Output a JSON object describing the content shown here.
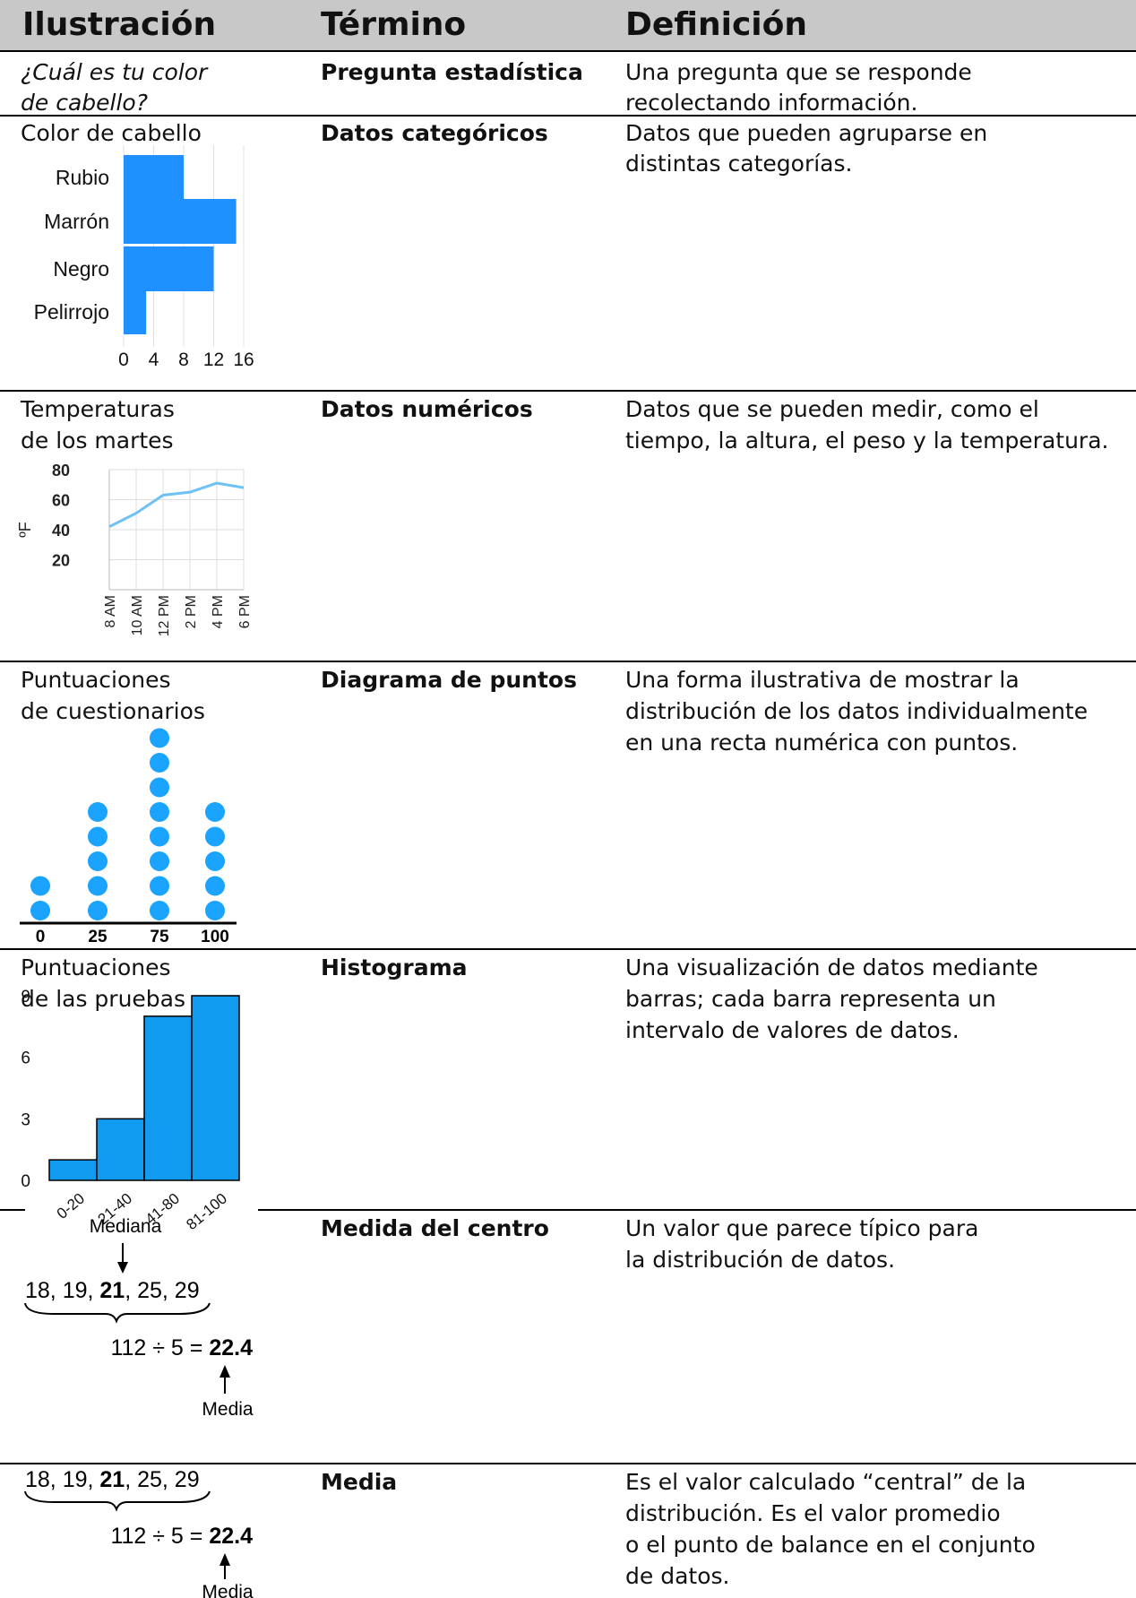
{
  "headers": {
    "illustration": "Ilustración",
    "term": "Término",
    "definition": "Definición"
  },
  "rows": [
    {
      "ill_title_1": "¿Cuál es tu color",
      "ill_title_2": "de cabello?",
      "term": "Pregunta estadística",
      "def_1": "Una pregunta que se responde",
      "def_2": "recolectando información."
    },
    {
      "ill_title_1": "Color de cabello",
      "term": "Datos categóricos",
      "def_1": "Datos que pueden agruparse en",
      "def_2": "distintas categorías."
    },
    {
      "ill_title_1": "Temperaturas",
      "ill_title_2": "de los martes",
      "term": "Datos numéricos",
      "def_1": "Datos que se pueden medir, como el",
      "def_2": "tiempo, la altura, el peso y la temperatura."
    },
    {
      "ill_title_1": "Puntuaciones",
      "ill_title_2": "de cuestionarios",
      "term": "Diagrama de puntos",
      "def_1": "Una forma ilustrativa de mostrar la",
      "def_2": "distribución de los datos individualmente",
      "def_3": "en una recta numérica con puntos."
    },
    {
      "ill_title_1": "Puntuaciones",
      "ill_title_2": "de las pruebas",
      "term": "Histograma",
      "def_1": "Una visualización de datos mediante",
      "def_2": "barras; cada barra representa un",
      "def_3": "intervalo de valores de datos."
    },
    {
      "term": "Medida del centro",
      "def_1": "Un valor que parece típico para",
      "def_2": "la distribución de datos."
    },
    {
      "term": "Media",
      "def_1": "Es el valor calculado “central” de la",
      "def_2": "distribución. Es el valor promedio",
      "def_3": "o el punto de balance en el conjunto",
      "def_4": "de datos."
    }
  ],
  "chart_data": [
    {
      "type": "bar",
      "orientation": "horizontal",
      "categories": [
        "Rubio",
        "Marrón",
        "Negro",
        "Pelirrojo"
      ],
      "values": [
        8,
        15,
        12,
        3
      ],
      "xticks": [
        "0",
        "4",
        "8",
        "12",
        "16"
      ],
      "xlim": [
        0,
        16
      ],
      "grid": true,
      "color": "#1e90ff"
    },
    {
      "type": "line",
      "x": [
        "8 AM",
        "10 AM",
        "12 PM",
        "2 PM",
        "4 PM",
        "6 PM"
      ],
      "values": [
        42,
        51,
        63,
        65,
        71,
        68
      ],
      "yticks": [
        "20",
        "40",
        "60",
        "80"
      ],
      "ylabel": "ºF",
      "ylim": [
        0,
        80
      ],
      "grid": true,
      "color": "#6ec1f5"
    },
    {
      "type": "scatter",
      "subtype": "dot-plot",
      "x": [
        "0",
        "25",
        "75",
        "100"
      ],
      "counts": [
        2,
        5,
        8,
        5
      ],
      "color": "#1aa3ff"
    },
    {
      "type": "bar",
      "subtype": "histogram",
      "categories": [
        "0-20",
        "21-40",
        "41-80",
        "81-100"
      ],
      "values": [
        1,
        3,
        8,
        9
      ],
      "yticks": [
        "0",
        "3",
        "6",
        "9"
      ],
      "ylim": [
        0,
        9
      ],
      "color": "#109bf0"
    }
  ],
  "mc_figure": {
    "mediana": "Mediana",
    "media": "Media",
    "n1": "18, 19, ",
    "n_bold": "21",
    "n2": ", 25, 29",
    "calc": "112 ÷ 5 = ",
    "calc_bold": "22.4"
  }
}
